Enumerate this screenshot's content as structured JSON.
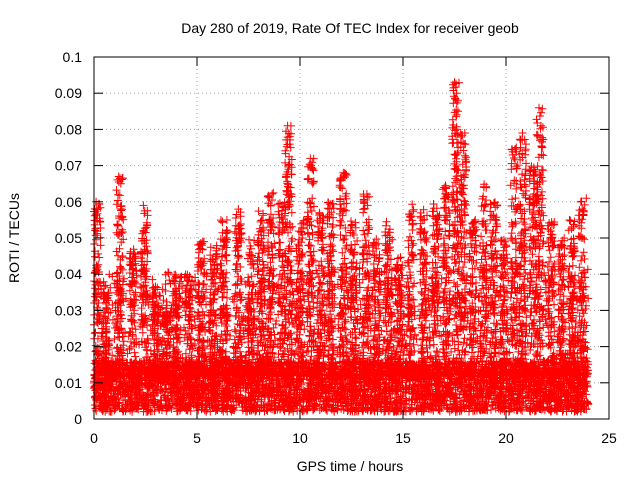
{
  "chart_data": {
    "type": "scatter",
    "title": "Day 280 of 2019, Rate Of TEC Index for receiver geob",
    "xlabel": "GPS time / hours",
    "ylabel": "ROTI / TECUs",
    "xlim": [
      0,
      25
    ],
    "ylim": [
      0,
      0.1
    ],
    "x_ticks": [
      "0",
      "5",
      "10",
      "15",
      "20",
      "25"
    ],
    "y_ticks": [
      "0",
      "0.01",
      "0.02",
      "0.03",
      "0.04",
      "0.05",
      "0.06",
      "0.07",
      "0.08",
      "0.09",
      "0.1"
    ],
    "grid": true,
    "marker": "plus",
    "color": "#ff0000",
    "x_range_of_data": [
      0,
      24
    ],
    "notable_points": {
      "x": [
        0.1,
        0.2,
        1.2,
        1.3,
        2.4,
        9.4,
        9.5,
        10.5,
        12.1,
        17.5,
        17.6,
        17.8,
        18.0,
        20.5,
        20.8,
        21.6,
        21.7,
        23.7,
        23.9
      ],
      "y": [
        0.06,
        0.058,
        0.067,
        0.065,
        0.059,
        0.081,
        0.078,
        0.072,
        0.068,
        0.093,
        0.084,
        0.079,
        0.079,
        0.075,
        0.079,
        0.086,
        0.081,
        0.058,
        0.061
      ]
    },
    "bursts": [
      {
        "x": 0.15,
        "h": 0.06
      },
      {
        "x": 0.55,
        "h": 0.035
      },
      {
        "x": 1.25,
        "h": 0.067
      },
      {
        "x": 1.9,
        "h": 0.047
      },
      {
        "x": 2.45,
        "h": 0.058
      },
      {
        "x": 3.0,
        "h": 0.035
      },
      {
        "x": 3.5,
        "h": 0.03
      },
      {
        "x": 4.0,
        "h": 0.04
      },
      {
        "x": 4.6,
        "h": 0.04
      },
      {
        "x": 5.2,
        "h": 0.05
      },
      {
        "x": 5.8,
        "h": 0.048
      },
      {
        "x": 6.3,
        "h": 0.055
      },
      {
        "x": 7.0,
        "h": 0.058
      },
      {
        "x": 7.6,
        "h": 0.05
      },
      {
        "x": 8.1,
        "h": 0.058
      },
      {
        "x": 8.6,
        "h": 0.063
      },
      {
        "x": 9.1,
        "h": 0.06
      },
      {
        "x": 9.45,
        "h": 0.081
      },
      {
        "x": 10.0,
        "h": 0.055
      },
      {
        "x": 10.5,
        "h": 0.072
      },
      {
        "x": 11.0,
        "h": 0.057
      },
      {
        "x": 11.5,
        "h": 0.06
      },
      {
        "x": 12.1,
        "h": 0.068
      },
      {
        "x": 12.6,
        "h": 0.055
      },
      {
        "x": 13.2,
        "h": 0.063
      },
      {
        "x": 13.7,
        "h": 0.05
      },
      {
        "x": 14.3,
        "h": 0.055
      },
      {
        "x": 14.8,
        "h": 0.045
      },
      {
        "x": 15.4,
        "h": 0.06
      },
      {
        "x": 16.0,
        "h": 0.058
      },
      {
        "x": 16.6,
        "h": 0.06
      },
      {
        "x": 17.1,
        "h": 0.065
      },
      {
        "x": 17.55,
        "h": 0.093
      },
      {
        "x": 17.9,
        "h": 0.079
      },
      {
        "x": 18.4,
        "h": 0.055
      },
      {
        "x": 18.9,
        "h": 0.065
      },
      {
        "x": 19.4,
        "h": 0.06
      },
      {
        "x": 19.9,
        "h": 0.05
      },
      {
        "x": 20.4,
        "h": 0.075
      },
      {
        "x": 20.8,
        "h": 0.079
      },
      {
        "x": 21.3,
        "h": 0.07
      },
      {
        "x": 21.65,
        "h": 0.086
      },
      {
        "x": 22.2,
        "h": 0.055
      },
      {
        "x": 22.7,
        "h": 0.05
      },
      {
        "x": 23.2,
        "h": 0.055
      },
      {
        "x": 23.7,
        "h": 0.061
      }
    ],
    "baseline_band": [
      0.002,
      0.016
    ]
  }
}
